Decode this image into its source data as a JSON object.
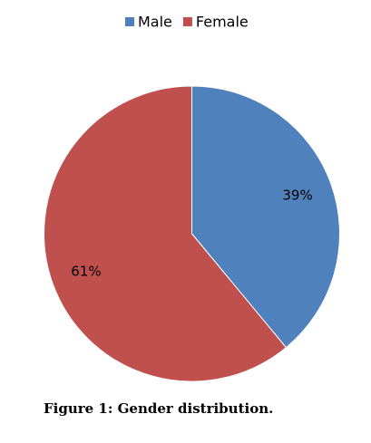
{
  "chart_data": {
    "type": "pie",
    "categories": [
      "Male",
      "Female"
    ],
    "values": [
      39,
      61
    ],
    "value_labels": [
      "39%",
      "61%"
    ],
    "colors": [
      "#4f81bd",
      "#c0504d"
    ],
    "legend": "top",
    "caption": "Figure 1: Gender distribution."
  }
}
